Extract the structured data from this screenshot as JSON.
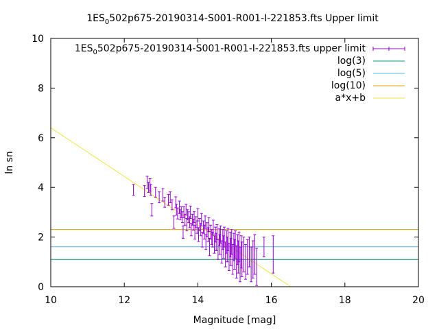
{
  "chart_data": {
    "type": "scatter",
    "title": {
      "prefix": "1ES",
      "subscript": "0",
      "suffix": "502p675-20190314-S001-R001-I-221853.fts Upper limit"
    },
    "xlabel": "Magnitude [mag]",
    "ylabel": "ln sn",
    "xlim": [
      10,
      20
    ],
    "ylim": [
      0,
      10
    ],
    "xticks": [
      "10",
      "12",
      "14",
      "16",
      "18",
      "20"
    ],
    "yticks": [
      "0",
      "2",
      "4",
      "6",
      "8",
      "10"
    ],
    "grid": false,
    "legend_position": "top-right",
    "legend": [
      {
        "prefix": "1ES",
        "subscript": "0",
        "suffix": "502p675-20190314-S001-R001-I-221853.fts upper limit",
        "color": "#9400d3",
        "style": "errorbar"
      },
      {
        "label": "log(3)",
        "color": "#009e73",
        "style": "line"
      },
      {
        "label": "log(5)",
        "color": "#56b4e9",
        "style": "line"
      },
      {
        "label": "log(10)",
        "color": "#e69f00",
        "style": "line"
      },
      {
        "label": "a*x+b",
        "color": "#f0e442",
        "style": "line"
      }
    ],
    "hlines": [
      {
        "name": "log(3)",
        "y": 1.0986,
        "color": "#009e73"
      },
      {
        "name": "log(5)",
        "y": 1.6094,
        "color": "#56b4e9"
      },
      {
        "name": "log(10)",
        "y": 2.3026,
        "color": "#e69f00"
      }
    ],
    "fit_line": {
      "name": "a*x+b",
      "slope": -0.98,
      "intercept": 16.2,
      "color": "#f0e442"
    },
    "series": [
      {
        "name": "upper limit",
        "color": "#9400d3",
        "points": [
          [
            12.25,
            3.9,
            0.22
          ],
          [
            12.55,
            3.85,
            0.22
          ],
          [
            12.62,
            4.2,
            0.25
          ],
          [
            12.66,
            4.0,
            0.2
          ],
          [
            12.7,
            4.1,
            0.25
          ],
          [
            12.72,
            3.9,
            0.22
          ],
          [
            12.75,
            3.1,
            0.25
          ],
          [
            12.85,
            3.8,
            0.2
          ],
          [
            12.95,
            3.6,
            0.22
          ],
          [
            13.05,
            3.7,
            0.25
          ],
          [
            13.1,
            3.4,
            0.2
          ],
          [
            13.2,
            3.5,
            0.22
          ],
          [
            13.25,
            3.6,
            0.22
          ],
          [
            13.3,
            3.3,
            0.2
          ],
          [
            13.35,
            2.6,
            0.25
          ],
          [
            13.4,
            3.4,
            0.22
          ],
          [
            13.42,
            3.1,
            0.22
          ],
          [
            13.45,
            2.95,
            0.22
          ],
          [
            13.5,
            3.2,
            0.25
          ],
          [
            13.52,
            2.9,
            0.2
          ],
          [
            13.55,
            3.0,
            0.22
          ],
          [
            13.58,
            2.8,
            0.22
          ],
          [
            13.6,
            2.2,
            0.25
          ],
          [
            13.62,
            3.0,
            0.22
          ],
          [
            13.65,
            2.7,
            0.22
          ],
          [
            13.68,
            3.1,
            0.22
          ],
          [
            13.7,
            2.5,
            0.25
          ],
          [
            13.72,
            2.9,
            0.2
          ],
          [
            13.75,
            2.8,
            0.22
          ],
          [
            13.78,
            2.6,
            0.22
          ],
          [
            13.8,
            3.0,
            0.25
          ],
          [
            13.82,
            2.3,
            0.25
          ],
          [
            13.85,
            2.7,
            0.22
          ],
          [
            13.88,
            2.5,
            0.22
          ],
          [
            13.9,
            2.8,
            0.22
          ],
          [
            13.92,
            2.2,
            0.28
          ],
          [
            13.95,
            2.6,
            0.22
          ],
          [
            13.98,
            2.4,
            0.25
          ],
          [
            14.0,
            2.9,
            0.25
          ],
          [
            14.02,
            2.1,
            0.28
          ],
          [
            14.05,
            2.5,
            0.25
          ],
          [
            14.08,
            2.3,
            0.25
          ],
          [
            14.1,
            2.7,
            0.25
          ],
          [
            14.12,
            1.9,
            0.3
          ],
          [
            14.15,
            2.4,
            0.25
          ],
          [
            14.18,
            2.2,
            0.28
          ],
          [
            14.2,
            2.6,
            0.25
          ],
          [
            14.22,
            1.8,
            0.3
          ],
          [
            14.25,
            2.3,
            0.28
          ],
          [
            14.28,
            2.1,
            0.28
          ],
          [
            14.3,
            2.5,
            0.28
          ],
          [
            14.32,
            1.6,
            0.35
          ],
          [
            14.35,
            2.2,
            0.28
          ],
          [
            14.38,
            2.0,
            0.3
          ],
          [
            14.4,
            1.9,
            0.3
          ],
          [
            14.42,
            2.4,
            0.28
          ],
          [
            14.45,
            1.7,
            0.35
          ],
          [
            14.48,
            2.1,
            0.3
          ],
          [
            14.5,
            1.8,
            0.35
          ],
          [
            14.52,
            2.2,
            0.3
          ],
          [
            14.55,
            1.5,
            0.4
          ],
          [
            14.58,
            2.0,
            0.35
          ],
          [
            14.6,
            1.7,
            0.4
          ],
          [
            14.62,
            2.1,
            0.35
          ],
          [
            14.65,
            1.4,
            0.45
          ],
          [
            14.68,
            1.9,
            0.4
          ],
          [
            14.7,
            1.6,
            0.45
          ],
          [
            14.72,
            2.0,
            0.4
          ],
          [
            14.75,
            1.3,
            0.5
          ],
          [
            14.78,
            1.8,
            0.45
          ],
          [
            14.8,
            1.5,
            0.5
          ],
          [
            14.82,
            1.9,
            0.45
          ],
          [
            14.85,
            1.2,
            0.55
          ],
          [
            14.88,
            1.7,
            0.5
          ],
          [
            14.9,
            1.4,
            0.55
          ],
          [
            14.92,
            1.8,
            0.5
          ],
          [
            14.95,
            1.1,
            0.6
          ],
          [
            14.98,
            1.6,
            0.55
          ],
          [
            15.0,
            1.3,
            0.6
          ],
          [
            15.02,
            1.7,
            0.55
          ],
          [
            15.05,
            1.0,
            0.65
          ],
          [
            15.08,
            1.5,
            0.6
          ],
          [
            15.1,
            1.2,
            0.65
          ],
          [
            15.12,
            1.6,
            0.6
          ],
          [
            15.15,
            0.9,
            0.7
          ],
          [
            15.18,
            1.4,
            0.65
          ],
          [
            15.2,
            1.1,
            0.7
          ],
          [
            15.25,
            1.3,
            0.7
          ],
          [
            15.3,
            1.0,
            0.7
          ],
          [
            15.35,
            1.2,
            0.7
          ],
          [
            15.4,
            1.4,
            0.6
          ],
          [
            15.45,
            0.9,
            0.7
          ],
          [
            15.5,
            1.1,
            0.75
          ],
          [
            15.55,
            1.3,
            0.8
          ],
          [
            15.6,
            0.8,
            0.75
          ],
          [
            15.8,
            1.6,
            0.4
          ],
          [
            16.05,
            1.3,
            0.75
          ]
        ]
      }
    ]
  }
}
